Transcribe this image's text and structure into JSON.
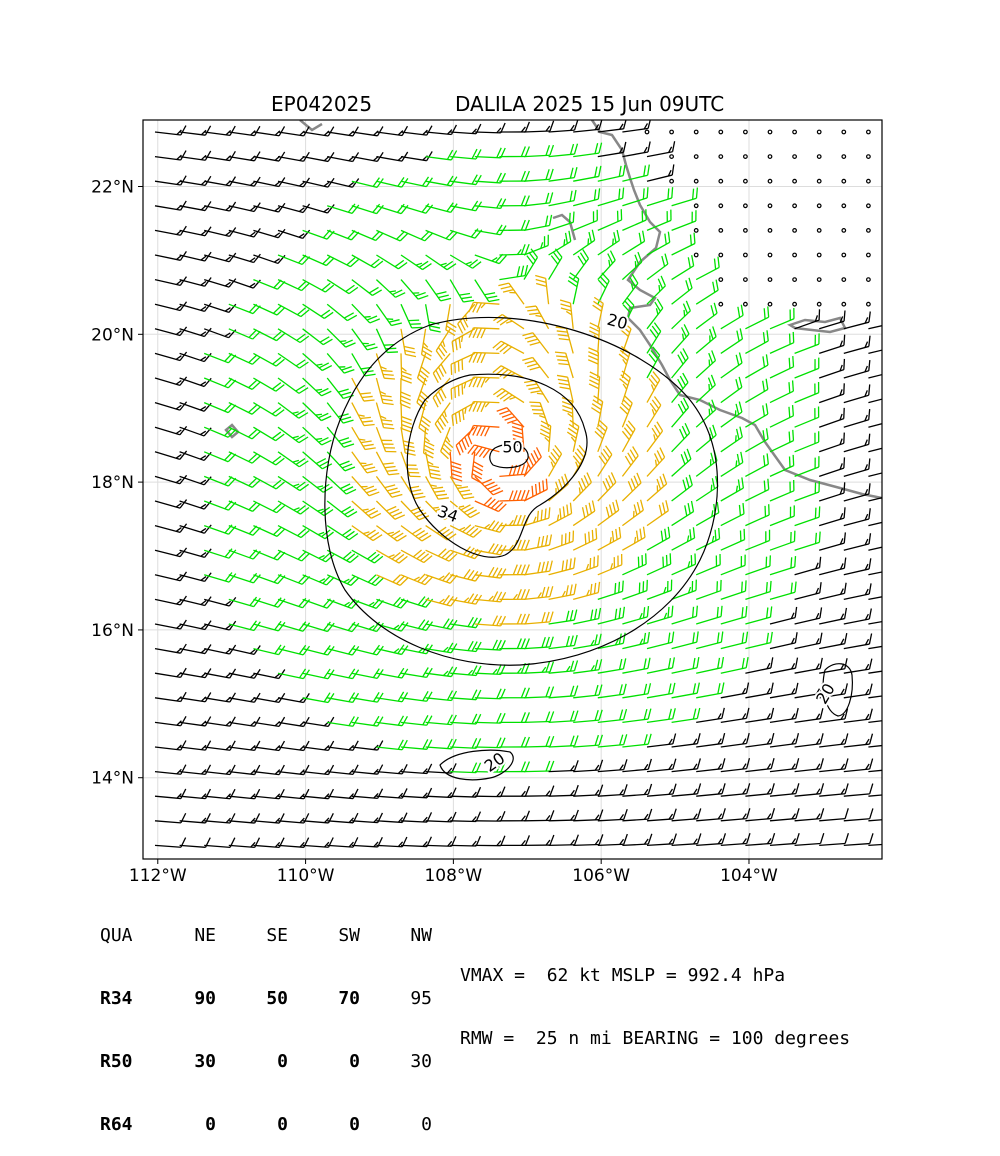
{
  "title": {
    "storm_id": "EP042025",
    "storm_info": "DALILA 2025 15 Jun 09UTC"
  },
  "map": {
    "lon_range": [
      -112.2,
      -102.2
    ],
    "lat_range": [
      12.9,
      22.9
    ],
    "x_ticks": [
      {
        "value": -112,
        "label": "112°W"
      },
      {
        "value": -110,
        "label": "110°W"
      },
      {
        "value": -108,
        "label": "108°W"
      },
      {
        "value": -106,
        "label": "106°W"
      },
      {
        "value": -104,
        "label": "104°W"
      }
    ],
    "y_ticks": [
      {
        "value": 14,
        "label": "14°N"
      },
      {
        "value": 16,
        "label": "16°N"
      },
      {
        "value": 18,
        "label": "18°N"
      },
      {
        "value": 20,
        "label": "20°N"
      },
      {
        "value": 22,
        "label": "22°N"
      }
    ],
    "grid": true,
    "storm_center": {
      "lon": -107.4,
      "lat": 18.3
    },
    "contour_labels": [
      {
        "text": "20",
        "lon": -105.8,
        "lat": 20.1,
        "rotation": 15
      },
      {
        "text": "50",
        "lon": -107.2,
        "lat": 18.4,
        "rotation": 0
      },
      {
        "text": "34",
        "lon": -108.1,
        "lat": 17.5,
        "rotation": 20
      },
      {
        "text": "20",
        "lon": -107.4,
        "lat": 14.15,
        "rotation": -35
      },
      {
        "text": "20",
        "lon": -102.9,
        "lat": 15.1,
        "rotation": -60
      }
    ],
    "colors": {
      "calm": "#000000",
      "wind_20_34": "#00e000",
      "wind_34_50": "#e8b000",
      "wind_50_plus": "#ff6000",
      "coastline": "#808080",
      "contour": "#000000",
      "grid": "#dddddd"
    }
  },
  "wind_radii": {
    "header": [
      "QUA",
      "NE",
      "SE",
      "SW",
      "NW"
    ],
    "rows": [
      {
        "label": "R34",
        "values": [
          "90",
          "50",
          "70",
          "95"
        ]
      },
      {
        "label": "R50",
        "values": [
          "30",
          "0",
          "0",
          "30"
        ]
      },
      {
        "label": "R64",
        "values": [
          "0",
          "0",
          "0",
          "0"
        ]
      }
    ]
  },
  "stats": {
    "line1": "VMAX =  62 kt MSLP = 992.4 hPa",
    "line2": "RMW =  25 n mi BEARING = 100 degrees"
  }
}
